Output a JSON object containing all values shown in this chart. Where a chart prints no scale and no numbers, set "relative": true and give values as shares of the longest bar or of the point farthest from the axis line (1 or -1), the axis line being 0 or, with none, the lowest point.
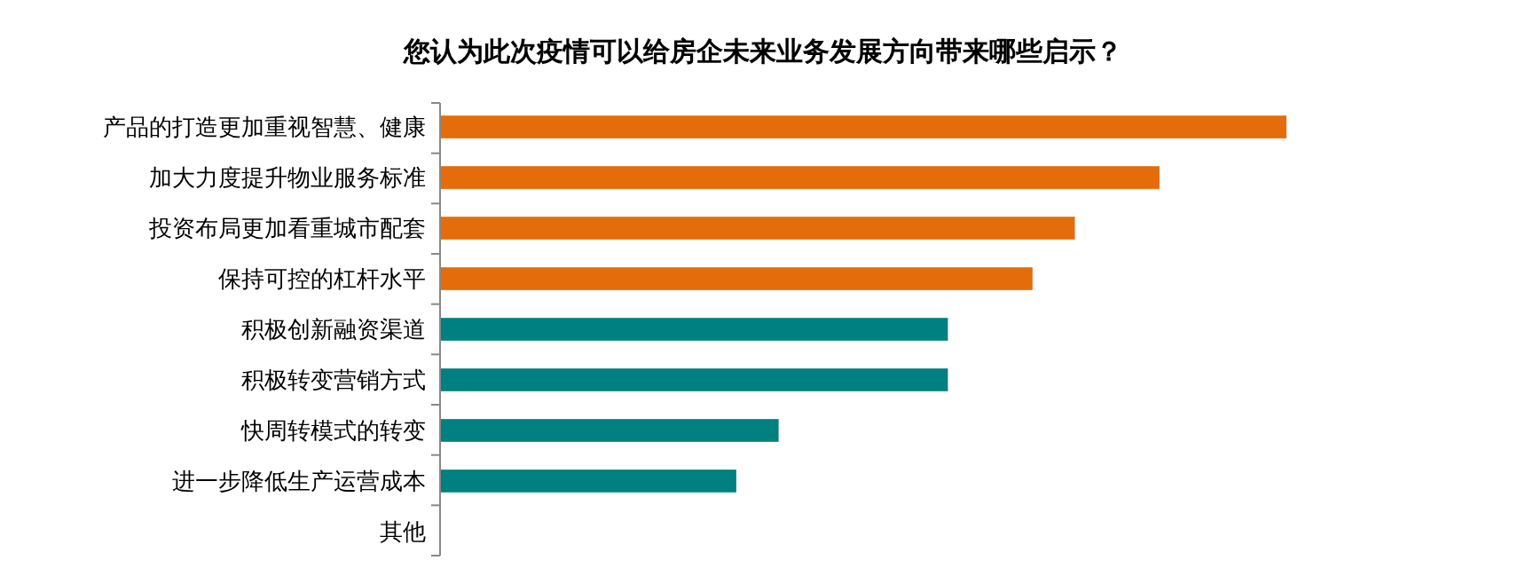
{
  "chart_data": {
    "type": "bar",
    "orientation": "horizontal",
    "relative": true,
    "title": "您认为此次疫情可以给房企未来业务发展方向带来哪些启示？",
    "categories": [
      "产品的打造更加重视智慧、健康",
      "加大力度提升物业服务标准",
      "投资布局更加看重城市配套",
      "保持可控的杠杆水平",
      "积极创新融资渠道",
      "积极转变营销方式",
      "快周转模式的转变",
      "进一步降低生产运营成本",
      "其他"
    ],
    "values": [
      1,
      0.85,
      0.75,
      0.7,
      0.6,
      0.6,
      0.4,
      0.35,
      0
    ],
    "colors": [
      "#e46c0a",
      "#e46c0a",
      "#e46c0a",
      "#e46c0a",
      "#008080",
      "#008080",
      "#008080",
      "#008080",
      "#008080"
    ]
  }
}
